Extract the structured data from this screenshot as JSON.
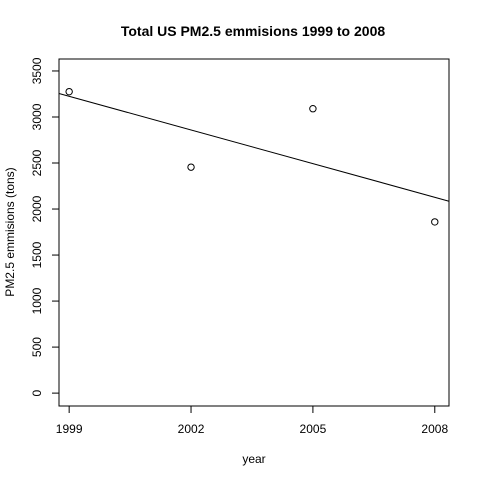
{
  "chart_data": {
    "type": "scatter",
    "title": "Total US PM2.5 emmisions 1999 to 2008",
    "xlabel": "year",
    "ylabel": "PM2.5 emmisions (tons)",
    "x": [
      1999,
      2002,
      2005,
      2008
    ],
    "y": [
      3275,
      2455,
      3090,
      1860
    ],
    "xticks": [
      "1999",
      "2002",
      "2005",
      "2008"
    ],
    "yticks": [
      "0",
      "500",
      "1000",
      "1500",
      "2000",
      "2500",
      "3000",
      "3500"
    ],
    "xlim": [
      1998.75,
      2008.35
    ],
    "ylim": [
      -140,
      3630
    ],
    "trendline": {
      "x": [
        1998.75,
        2008.35
      ],
      "y": [
        3255,
        2085
      ]
    },
    "grid": false,
    "point_style": "open-circle"
  }
}
